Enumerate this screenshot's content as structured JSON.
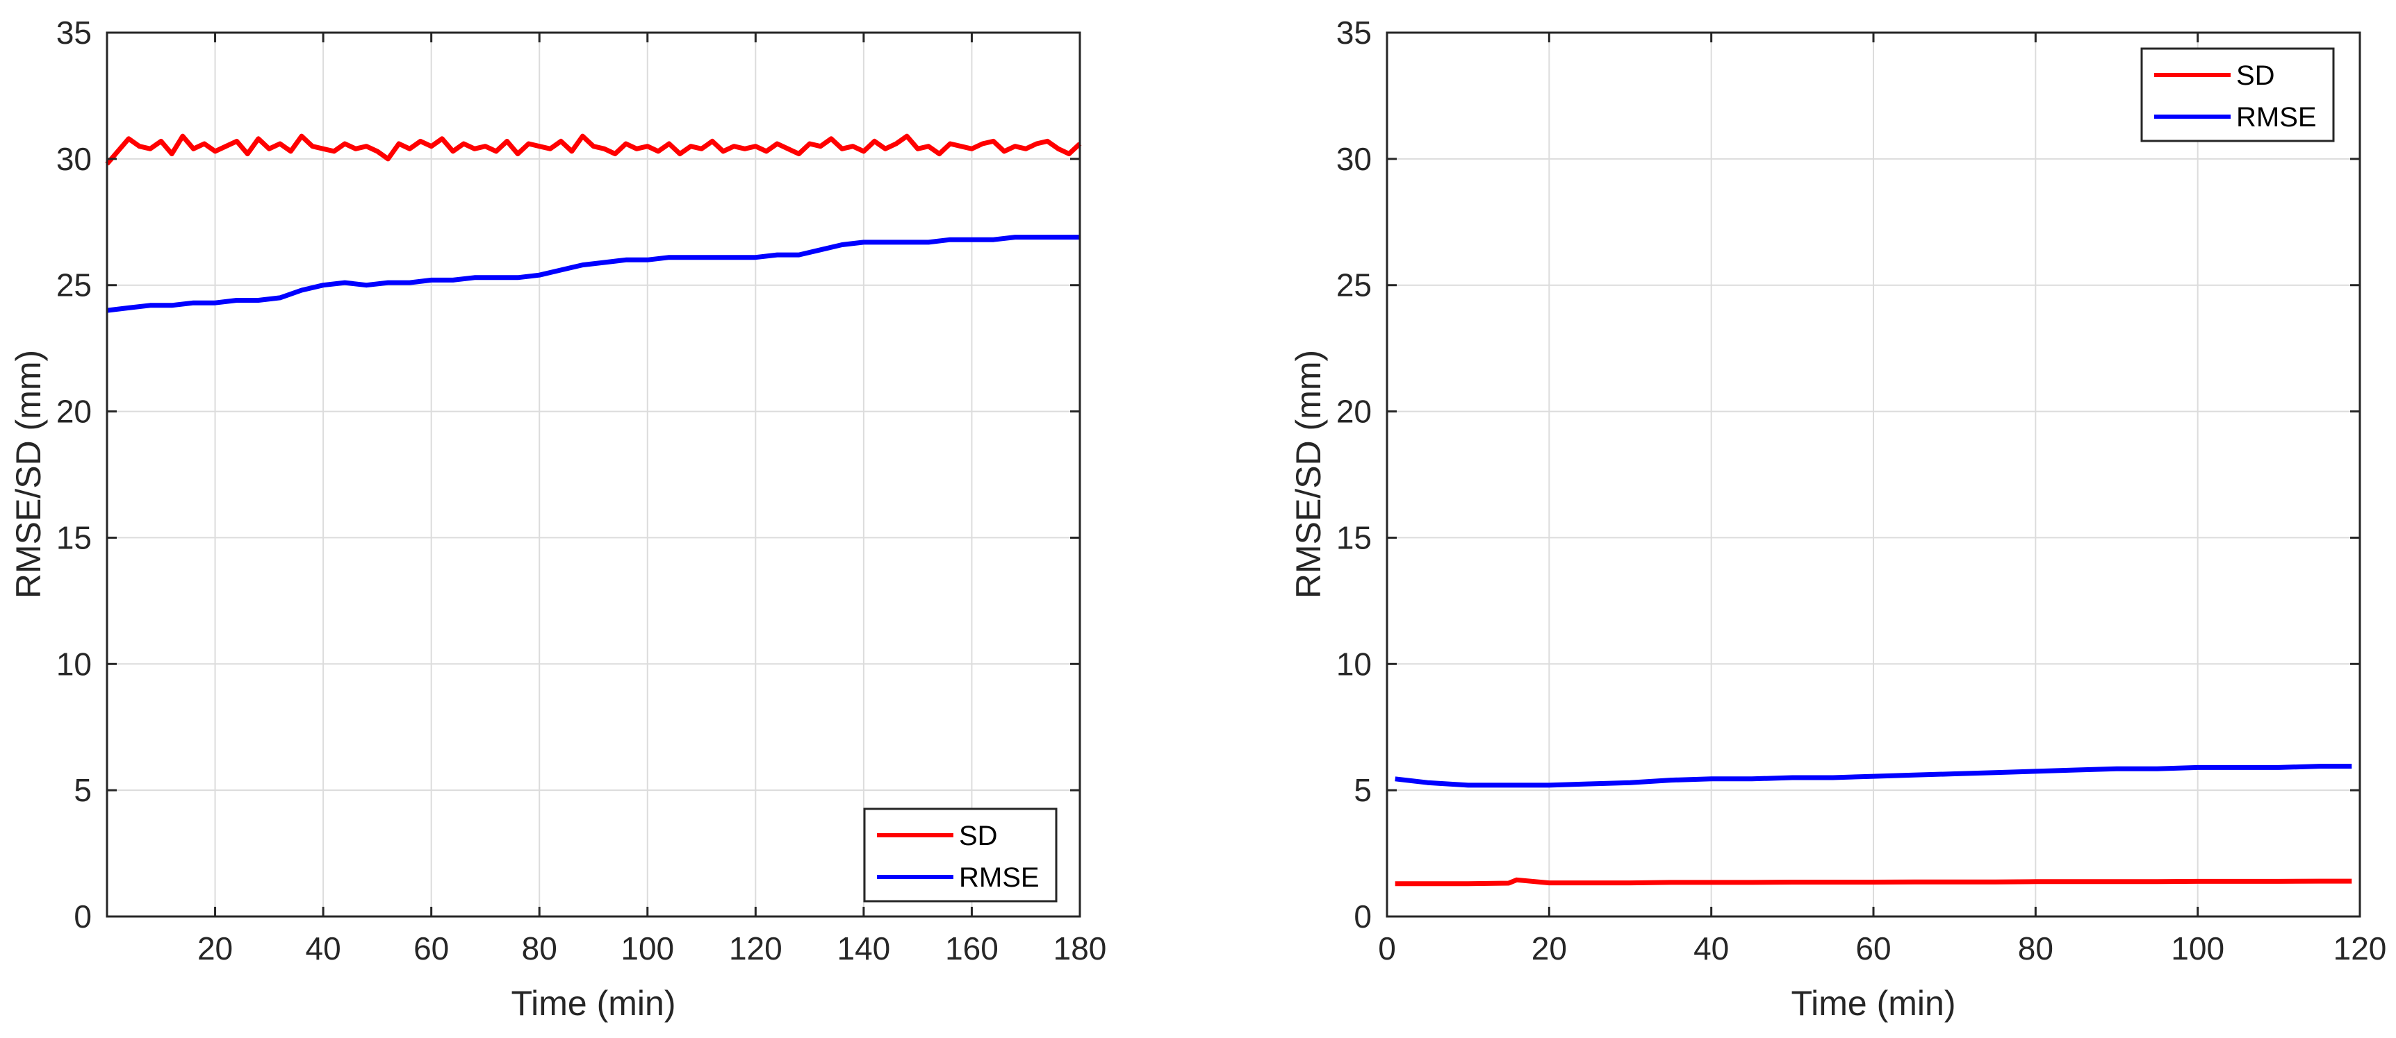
{
  "chart_data": [
    {
      "type": "line",
      "title": "",
      "xlabel": "Time (min)",
      "ylabel": "RMSE/SD (mm)",
      "xlim": [
        0,
        180
      ],
      "ylim": [
        0,
        35
      ],
      "xticks": [
        20,
        40,
        60,
        80,
        100,
        120,
        140,
        160,
        180
      ],
      "yticks": [
        0,
        5,
        10,
        15,
        20,
        25,
        30,
        35
      ],
      "grid": true,
      "legend_position": "bottom-right",
      "series": [
        {
          "name": "SD",
          "color": "#ff0000",
          "x": [
            0,
            2,
            4,
            6,
            8,
            10,
            12,
            14,
            16,
            18,
            20,
            22,
            24,
            26,
            28,
            30,
            32,
            34,
            36,
            38,
            40,
            42,
            44,
            46,
            48,
            50,
            52,
            54,
            56,
            58,
            60,
            62,
            64,
            66,
            68,
            70,
            72,
            74,
            76,
            78,
            80,
            82,
            84,
            86,
            88,
            90,
            92,
            94,
            96,
            98,
            100,
            102,
            104,
            106,
            108,
            110,
            112,
            114,
            116,
            118,
            120,
            122,
            124,
            126,
            128,
            130,
            132,
            134,
            136,
            138,
            140,
            142,
            144,
            146,
            148,
            150,
            152,
            154,
            156,
            158,
            160,
            162,
            164,
            166,
            168,
            170,
            172,
            174,
            176,
            178,
            180
          ],
          "y": [
            29.8,
            30.3,
            30.8,
            30.5,
            30.4,
            30.7,
            30.2,
            30.9,
            30.4,
            30.6,
            30.3,
            30.5,
            30.7,
            30.2,
            30.8,
            30.4,
            30.6,
            30.3,
            30.9,
            30.5,
            30.4,
            30.3,
            30.6,
            30.4,
            30.5,
            30.3,
            30.0,
            30.6,
            30.4,
            30.7,
            30.5,
            30.8,
            30.3,
            30.6,
            30.4,
            30.5,
            30.3,
            30.7,
            30.2,
            30.6,
            30.5,
            30.4,
            30.7,
            30.3,
            30.9,
            30.5,
            30.4,
            30.2,
            30.6,
            30.4,
            30.5,
            30.3,
            30.6,
            30.2,
            30.5,
            30.4,
            30.7,
            30.3,
            30.5,
            30.4,
            30.5,
            30.3,
            30.6,
            30.4,
            30.2,
            30.6,
            30.5,
            30.8,
            30.4,
            30.5,
            30.3,
            30.7,
            30.4,
            30.6,
            30.9,
            30.4,
            30.5,
            30.2,
            30.6,
            30.5,
            30.4,
            30.6,
            30.7,
            30.3,
            30.5,
            30.4,
            30.6,
            30.7,
            30.4,
            30.2,
            30.6
          ]
        },
        {
          "name": "RMSE",
          "color": "#0000ff",
          "x": [
            0,
            4,
            8,
            12,
            16,
            20,
            24,
            28,
            32,
            36,
            40,
            44,
            48,
            52,
            56,
            60,
            64,
            68,
            72,
            76,
            80,
            84,
            88,
            92,
            96,
            100,
            104,
            108,
            112,
            116,
            120,
            124,
            128,
            132,
            136,
            140,
            144,
            148,
            152,
            156,
            160,
            164,
            168,
            172,
            176,
            180
          ],
          "y": [
            24.0,
            24.1,
            24.2,
            24.2,
            24.3,
            24.3,
            24.4,
            24.4,
            24.5,
            24.8,
            25.0,
            25.1,
            25.0,
            25.1,
            25.1,
            25.2,
            25.2,
            25.3,
            25.3,
            25.3,
            25.4,
            25.6,
            25.8,
            25.9,
            26.0,
            26.0,
            26.1,
            26.1,
            26.1,
            26.1,
            26.1,
            26.2,
            26.2,
            26.4,
            26.6,
            26.7,
            26.7,
            26.7,
            26.7,
            26.8,
            26.8,
            26.8,
            26.9,
            26.9,
            26.9,
            26.9
          ]
        }
      ]
    },
    {
      "type": "line",
      "title": "",
      "xlabel": "Time (min)",
      "ylabel": "RMSE/SD (mm)",
      "xlim": [
        0,
        120
      ],
      "ylim": [
        0,
        35
      ],
      "xticks": [
        0,
        20,
        40,
        60,
        80,
        100,
        120
      ],
      "yticks": [
        0,
        5,
        10,
        15,
        20,
        25,
        30,
        35
      ],
      "grid": true,
      "legend_position": "top-right",
      "series": [
        {
          "name": "SD",
          "color": "#ff0000",
          "x": [
            1,
            5,
            10,
            15,
            16,
            20,
            25,
            30,
            35,
            40,
            45,
            50,
            55,
            60,
            65,
            70,
            75,
            80,
            85,
            90,
            95,
            100,
            105,
            110,
            115,
            119
          ],
          "y": [
            1.3,
            1.3,
            1.3,
            1.32,
            1.45,
            1.33,
            1.33,
            1.33,
            1.35,
            1.35,
            1.35,
            1.36,
            1.36,
            1.36,
            1.37,
            1.37,
            1.37,
            1.38,
            1.38,
            1.38,
            1.38,
            1.39,
            1.39,
            1.39,
            1.4,
            1.4
          ]
        },
        {
          "name": "RMSE",
          "color": "#0000ff",
          "x": [
            1,
            5,
            10,
            15,
            20,
            25,
            30,
            35,
            40,
            45,
            50,
            55,
            60,
            65,
            70,
            75,
            80,
            85,
            90,
            95,
            100,
            105,
            110,
            115,
            119
          ],
          "y": [
            5.45,
            5.3,
            5.2,
            5.2,
            5.2,
            5.25,
            5.3,
            5.4,
            5.45,
            5.45,
            5.5,
            5.5,
            5.55,
            5.6,
            5.65,
            5.7,
            5.75,
            5.8,
            5.85,
            5.85,
            5.9,
            5.9,
            5.9,
            5.95,
            5.95
          ]
        }
      ]
    }
  ]
}
